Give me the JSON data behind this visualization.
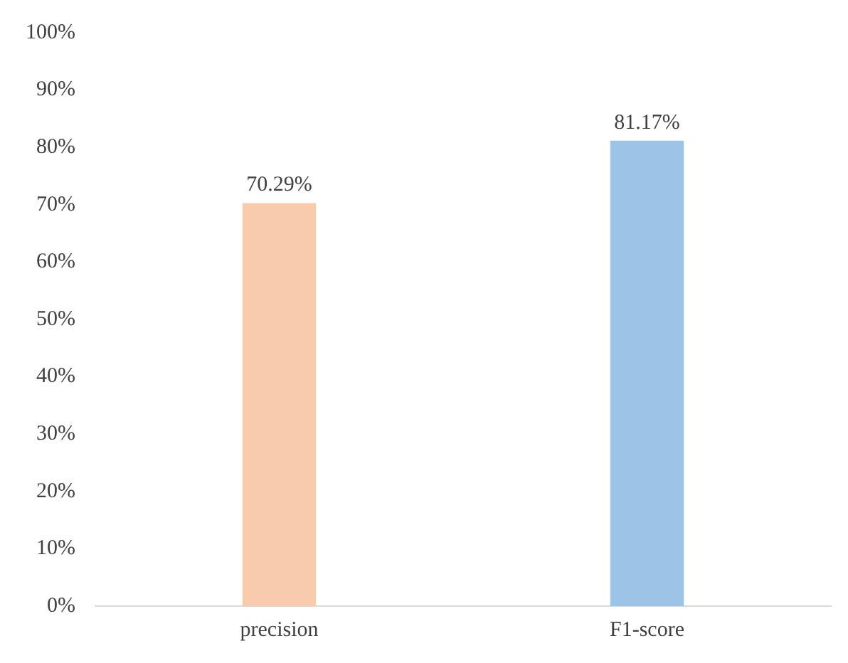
{
  "chart_data": {
    "type": "bar",
    "categories": [
      "precision",
      "F1-score"
    ],
    "values": [
      70.29,
      81.17
    ],
    "colors": [
      "#f8cbad",
      "#9dc3e6"
    ],
    "value_labels": [
      "70.29%",
      "81.17%"
    ],
    "ylim": [
      0,
      100
    ],
    "yticks": [
      {
        "value": 0,
        "label": "0%"
      },
      {
        "value": 10,
        "label": "10%"
      },
      {
        "value": 20,
        "label": "20%"
      },
      {
        "value": 30,
        "label": "30%"
      },
      {
        "value": 40,
        "label": "40%"
      },
      {
        "value": 50,
        "label": "50%"
      },
      {
        "value": 60,
        "label": "60%"
      },
      {
        "value": 70,
        "label": "70%"
      },
      {
        "value": 80,
        "label": "80%"
      },
      {
        "value": 90,
        "label": "90%"
      },
      {
        "value": 100,
        "label": "100%"
      }
    ],
    "grid": false
  }
}
